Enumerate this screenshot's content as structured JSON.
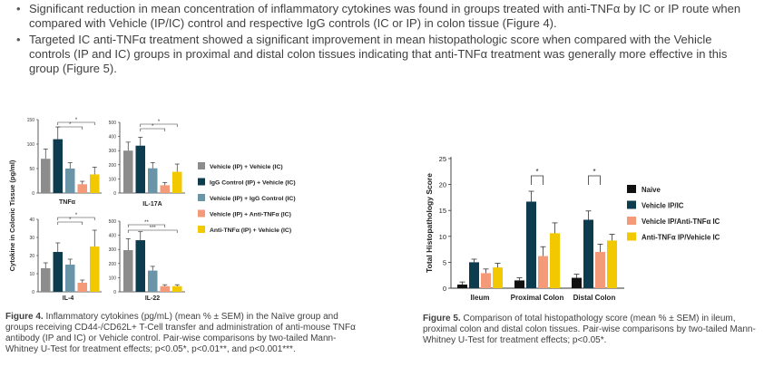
{
  "bullets": [
    {
      "text": "Significant reduction in mean concentration of inflammatory cytokines was found in groups treated with anti-TNFα by IC or IP route when compared with Vehicle (IP/IC) control and respective IgG controls (IC or IP) in colon tissue (Figure 4)."
    },
    {
      "text": "Targeted IC anti-TNFα treatment showed a significant improvement in mean histopathologic score when compared with the Vehicle controls (IP and IC) groups in proximal and distal colon tissues indicating that anti-TNFα treatment was generally more effective in this group (Figure 5)."
    }
  ],
  "figure4": {
    "caption_label": "Figure 4.",
    "caption_text": " Inflammatory cytokines (pg/mL) (mean % ± SEM) in the Naïve group and groups receiving CD44-/CD62L+ T-Cell transfer and administration of anti-mouse TNFα antibody (IP and IC) or Vehicle control. Pair-wise comparisons by two-tailed Mann-Whitney U-Test for treatment effects; p<0.05*, p<0.01**, and p<0.001***."
  },
  "figure5": {
    "caption_label": "Figure 5.",
    "caption_text": " Comparison of total histopathology score (mean % ± SEM) in ileum, proximal colon and distal colon tissues. Pair-wise comparisons by two-tailed Mann-Whitney U-Test for treatment effects; p<0.05*."
  },
  "chart_data": [
    {
      "type": "bar",
      "title": "TNFα",
      "ylabel": "Cytokine in Colonic Tissue (pg/ml)",
      "ylim": [
        0,
        150
      ],
      "yticks": [
        "0",
        "50",
        "100",
        "150"
      ],
      "series": [
        {
          "name": "Vehicle (IP) + Vehicle (IC)",
          "color": "#8c8c8c",
          "values": [
            70
          ],
          "err": [
            20
          ]
        },
        {
          "name": "IgG Control (IP) + Vehicle (IC)",
          "color": "#0e3c4f",
          "values": [
            110
          ],
          "err": [
            25
          ]
        },
        {
          "name": "Vehicle (IP) + IgG Control (IC)",
          "color": "#6a95a8",
          "values": [
            50
          ],
          "err": [
            12
          ]
        },
        {
          "name": "Vehicle (IP) + Anti-TNFα (IC)",
          "color": "#f59a78",
          "values": [
            18
          ],
          "err": [
            6
          ]
        },
        {
          "name": "Anti-TNFα (IP) + Vehicle (IC)",
          "color": "#f2c800",
          "values": [
            38
          ],
          "err": [
            15
          ]
        }
      ],
      "annotations": [
        "*",
        "*"
      ]
    },
    {
      "type": "bar",
      "title": "IL-17A",
      "ylim": [
        0,
        500
      ],
      "yticks": [
        "0",
        "100",
        "200",
        "300",
        "400",
        "500"
      ],
      "series": [
        {
          "name": "Vehicle (IP) + Vehicle (IC)",
          "color": "#8c8c8c",
          "values": [
            300
          ],
          "err": [
            60
          ]
        },
        {
          "name": "IgG Control (IP) + Vehicle (IC)",
          "color": "#0e3c4f",
          "values": [
            335
          ],
          "err": [
            60
          ]
        },
        {
          "name": "Vehicle (IP) + IgG Control (IC)",
          "color": "#6a95a8",
          "values": [
            175
          ],
          "err": [
            40
          ]
        },
        {
          "name": "Vehicle (IP) + Anti-TNFα (IC)",
          "color": "#f59a78",
          "values": [
            55
          ],
          "err": [
            20
          ]
        },
        {
          "name": "Anti-TNFα (IP) + Vehicle (IC)",
          "color": "#f2c800",
          "values": [
            150
          ],
          "err": [
            55
          ]
        }
      ],
      "annotations": [
        "*",
        "*"
      ]
    },
    {
      "type": "bar",
      "title": "IL-4",
      "ylim": [
        0,
        40
      ],
      "yticks": [
        "0",
        "10",
        "20",
        "30",
        "40"
      ],
      "series": [
        {
          "name": "Vehicle (IP) + Vehicle (IC)",
          "color": "#8c8c8c",
          "values": [
            13
          ],
          "err": [
            3
          ]
        },
        {
          "name": "IgG Control (IP) + Vehicle (IC)",
          "color": "#0e3c4f",
          "values": [
            22
          ],
          "err": [
            5
          ]
        },
        {
          "name": "Vehicle (IP) + IgG Control (IC)",
          "color": "#6a95a8",
          "values": [
            15
          ],
          "err": [
            3
          ]
        },
        {
          "name": "Vehicle (IP) + Anti-TNFα (IC)",
          "color": "#f59a78",
          "values": [
            5
          ],
          "err": [
            1.5
          ]
        },
        {
          "name": "Anti-TNFα (IP) + Vehicle (IC)",
          "color": "#f2c800",
          "values": [
            25
          ],
          "err": [
            9
          ]
        }
      ],
      "annotations": [
        "*",
        "*"
      ]
    },
    {
      "type": "bar",
      "title": "IL-22",
      "ylim": [
        0,
        500
      ],
      "yticks": [
        "0",
        "100",
        "200",
        "300",
        "400",
        "500"
      ],
      "series": [
        {
          "name": "Vehicle (IP) + Vehicle (IC)",
          "color": "#8c8c8c",
          "values": [
            295
          ],
          "err": [
            80
          ]
        },
        {
          "name": "IgG Control (IP) + Vehicle (IC)",
          "color": "#0e3c4f",
          "values": [
            365
          ],
          "err": [
            60
          ]
        },
        {
          "name": "Vehicle (IP) + IgG Control (IC)",
          "color": "#6a95a8",
          "values": [
            150
          ],
          "err": [
            30
          ]
        },
        {
          "name": "Vehicle (IP) + Anti-TNFα (IC)",
          "color": "#f59a78",
          "values": [
            40
          ],
          "err": [
            10
          ]
        },
        {
          "name": "Anti-TNFα (IP) + Vehicle (IC)",
          "color": "#f2c800",
          "values": [
            40
          ],
          "err": [
            10
          ]
        }
      ],
      "annotations": [
        "**",
        "***"
      ]
    },
    {
      "type": "bar",
      "ylabel": "Total Histopathology Score",
      "ylim": [
        0,
        25
      ],
      "yticks": [
        "0",
        "5",
        "10",
        "15",
        "20",
        "25"
      ],
      "categories": [
        "Ileum",
        "Proximal Colon",
        "Distal Colon"
      ],
      "series": [
        {
          "name": "Naive",
          "color": "#111111",
          "values": [
            0.7,
            1.5,
            2.0
          ],
          "err": [
            0.5,
            0.5,
            0.7
          ]
        },
        {
          "name": "Vehicle IP/IC",
          "color": "#0e3c4f",
          "values": [
            5.0,
            16.7,
            13.2
          ],
          "err": [
            0.6,
            2.0,
            1.7
          ]
        },
        {
          "name": "Vehicle IP/Anti-TNFα IC",
          "color": "#f59a78",
          "values": [
            2.9,
            6.2,
            7.0
          ],
          "err": [
            0.8,
            1.8,
            1.5
          ]
        },
        {
          "name": "Anti-TNFα IP/Vehicle IC",
          "color": "#f2c800",
          "values": [
            4.0,
            10.6,
            9.2
          ],
          "err": [
            0.8,
            2.0,
            1.2
          ]
        }
      ],
      "annotations": [
        "*",
        "*"
      ],
      "legend": "right"
    }
  ]
}
